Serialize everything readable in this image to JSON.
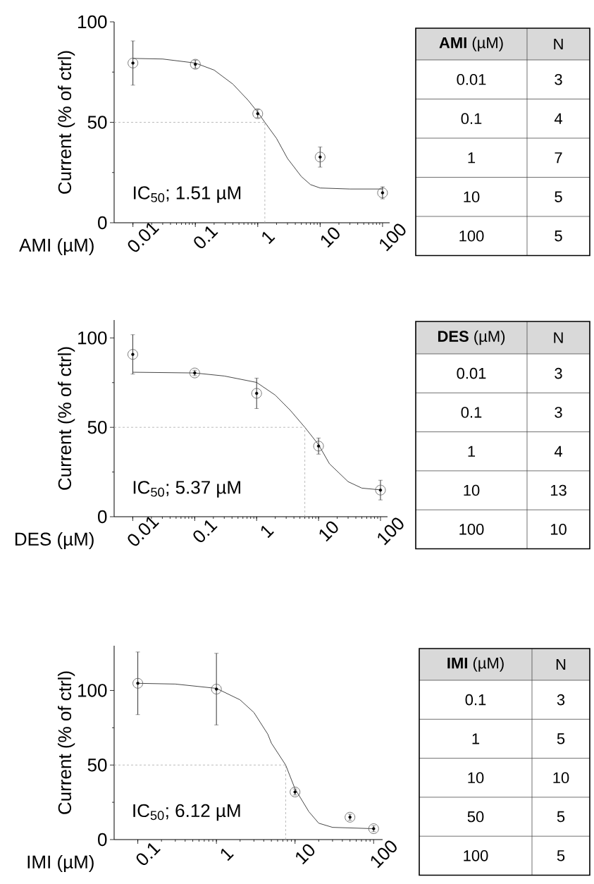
{
  "chart_data": [
    {
      "type": "scatter",
      "xlabel": "AMI (µM)",
      "ylabel": "Current (% of ctrl)",
      "log": "x",
      "xlim": [
        0.005,
        130
      ],
      "ylim": [
        0,
        100
      ],
      "xticks": [
        0.01,
        0.1,
        1,
        10,
        100
      ],
      "yticks": [
        0,
        50,
        100
      ],
      "series": [
        {
          "type": "scatter",
          "marker": "circle",
          "color": "#555555",
          "x": [
            0.01,
            0.1,
            1,
            10,
            100
          ],
          "values": [
            79.5,
            78.9,
            54.3,
            32.7,
            14.9
          ],
          "errors": [
            11,
            2,
            2,
            5,
            3
          ]
        },
        {
          "type": "line",
          "color": "#333333",
          "x": [
            0.01,
            0.03,
            0.1,
            0.2,
            0.4,
            0.7,
            1,
            1.3,
            2,
            3,
            5,
            7,
            10,
            30,
            100
          ],
          "values": [
            81.8,
            81.5,
            79.5,
            76,
            69,
            61,
            55,
            50,
            42,
            32,
            23,
            19,
            17.3,
            16.8,
            16.8
          ]
        }
      ],
      "ref_lines": [
        {
          "axis": "y",
          "value": 50,
          "color": "#aaaaaa",
          "line_style": "dashed"
        },
        {
          "axis": "x",
          "value": 1.3,
          "color": "#aaaaaa",
          "line_style": "dashed"
        }
      ],
      "annotations": [
        "IC$_{50}$; 1.51 µM"
      ]
    },
    {
      "type": "other",
      "annotations": [
        "**AMI** (µM)",
        "N",
        "0.01",
        "3",
        "0.1",
        "4",
        "1",
        "7",
        "10",
        "5",
        "100",
        "5"
      ]
    },
    {
      "type": "scatter",
      "xlabel": "DES (µM)",
      "ylabel": "Current (% of ctrl)",
      "log": "x",
      "xlim": [
        0.005,
        130
      ],
      "ylim": [
        0,
        110
      ],
      "xticks": [
        0.01,
        0.1,
        1,
        10,
        100
      ],
      "yticks": [
        0,
        50,
        100
      ],
      "series": [
        {
          "type": "scatter",
          "marker": "circle",
          "color": "#555555",
          "x": [
            0.01,
            0.1,
            1,
            10,
            100
          ],
          "values": [
            90.8,
            80.4,
            69,
            39.5,
            14.9
          ],
          "errors": [
            11,
            1.5,
            8.5,
            4.5,
            5.5
          ]
        },
        {
          "type": "line",
          "color": "#333333",
          "x": [
            0.01,
            0.1,
            0.3,
            1,
            2,
            3.5,
            6,
            10,
            15,
            30,
            50,
            100
          ],
          "values": [
            80.8,
            80.4,
            78.7,
            75.1,
            68,
            59.5,
            50,
            40.3,
            29.6,
            19.6,
            16,
            15
          ]
        }
      ],
      "ref_lines": [
        {
          "axis": "y",
          "value": 50,
          "color": "#aaaaaa",
          "line_style": "dashed"
        },
        {
          "axis": "x",
          "value": 6,
          "color": "#aaaaaa",
          "line_style": "dashed"
        }
      ],
      "annotations": [
        "IC$_{50}$; 5.37 µM"
      ]
    },
    {
      "type": "other",
      "annotations": [
        "**DES** (µM)",
        "N",
        "0.01",
        "3",
        "0.1",
        "3",
        "1",
        "4",
        "10",
        "13",
        "100",
        "10"
      ]
    },
    {
      "type": "scatter",
      "xlabel": "IMI (µM)",
      "ylabel": "Current (% of ctrl)",
      "log": "x",
      "xlim": [
        0.05,
        130
      ],
      "ylim": [
        0,
        130
      ],
      "xticks": [
        0.1,
        1,
        10,
        100
      ],
      "yticks": [
        0,
        50,
        100
      ],
      "series": [
        {
          "type": "scatter",
          "marker": "circle",
          "color": "#555555",
          "x": [
            0.1,
            1,
            10,
            50,
            100
          ],
          "values": [
            104.8,
            100.9,
            31.9,
            15,
            7.3
          ],
          "errors": [
            21,
            24,
            2,
            2,
            2
          ]
        },
        {
          "type": "line",
          "color": "#333333",
          "x": [
            0.1,
            0.3,
            1,
            2,
            3,
            4.5,
            5,
            7.6,
            10,
            15,
            20,
            30,
            100
          ],
          "values": [
            104.8,
            104.3,
            101.4,
            93.7,
            85.2,
            70.7,
            64.7,
            50,
            34,
            18.7,
            11,
            8.2,
            7.3
          ]
        }
      ],
      "ref_lines": [
        {
          "axis": "y",
          "value": 50,
          "color": "#aaaaaa",
          "line_style": "dashed"
        },
        {
          "axis": "x",
          "value": 7.6,
          "color": "#aaaaaa",
          "line_style": "dashed"
        }
      ],
      "annotations": [
        "IC$_{50}$; 6.12 µM"
      ]
    },
    {
      "type": "other",
      "annotations": [
        "**IMI** (µM)",
        "N",
        "0.1",
        "3",
        "1",
        "5",
        "10",
        "10",
        "50",
        "5",
        "100",
        "5"
      ]
    }
  ]
}
